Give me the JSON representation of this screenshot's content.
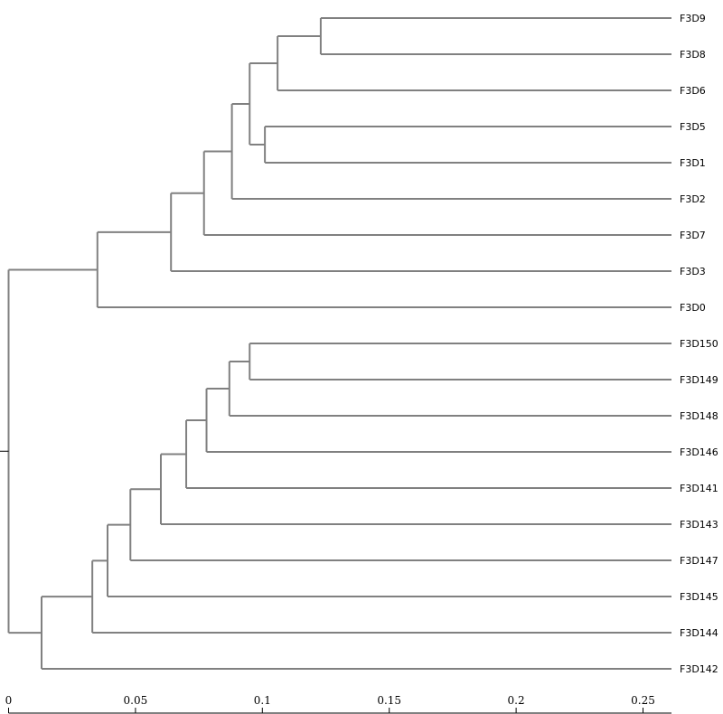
{
  "chart_data": {
    "type": "dendrogram",
    "orientation": "left",
    "colors": {
      "branch": "#808080",
      "axis": "#000000",
      "background": "#ffffff"
    },
    "leaves": [
      "F3D9",
      "F3D8",
      "F3D6",
      "F3D5",
      "F3D1",
      "F3D2",
      "F3D7",
      "F3D3",
      "F3D0",
      "F3D150",
      "F3D149",
      "F3D148",
      "F3D146",
      "F3D141",
      "F3D143",
      "F3D147",
      "F3D145",
      "F3D144",
      "F3D142"
    ],
    "xlim": [
      0,
      0.262
    ],
    "ticks": [
      {
        "value": 0,
        "label": "0"
      },
      {
        "value": 0.05,
        "label": "0.05"
      },
      {
        "value": 0.1,
        "label": "0.1"
      },
      {
        "value": 0.15,
        "label": "0.15"
      },
      {
        "value": 0.2,
        "label": "0.2"
      },
      {
        "value": 0.25,
        "label": "0.25"
      }
    ],
    "merges": [
      {
        "id": "N1",
        "height": 0.123,
        "children": [
          "F3D9",
          "F3D8"
        ]
      },
      {
        "id": "N2",
        "height": 0.106,
        "children": [
          "N1",
          "F3D6"
        ]
      },
      {
        "id": "N3",
        "height": 0.101,
        "children": [
          "F3D5",
          "F3D1"
        ]
      },
      {
        "id": "N4",
        "height": 0.095,
        "children": [
          "N2",
          "N3"
        ]
      },
      {
        "id": "N5",
        "height": 0.088,
        "children": [
          "N4",
          "F3D2"
        ]
      },
      {
        "id": "N6",
        "height": 0.077,
        "children": [
          "N5",
          "F3D7"
        ]
      },
      {
        "id": "N7",
        "height": 0.064,
        "children": [
          "N6",
          "F3D3"
        ]
      },
      {
        "id": "N8",
        "height": 0.035,
        "children": [
          "N7",
          "F3D0"
        ]
      },
      {
        "id": "N9",
        "height": 0.095,
        "children": [
          "F3D150",
          "F3D149"
        ]
      },
      {
        "id": "N10",
        "height": 0.087,
        "children": [
          "N9",
          "F3D148"
        ]
      },
      {
        "id": "N11",
        "height": 0.078,
        "children": [
          "N10",
          "F3D146"
        ]
      },
      {
        "id": "N12",
        "height": 0.07,
        "children": [
          "N11",
          "F3D141"
        ]
      },
      {
        "id": "N13",
        "height": 0.06,
        "children": [
          "N12",
          "F3D143"
        ]
      },
      {
        "id": "N14",
        "height": 0.048,
        "children": [
          "N13",
          "F3D147"
        ]
      },
      {
        "id": "N15",
        "height": 0.039,
        "children": [
          "N14",
          "F3D145"
        ]
      },
      {
        "id": "N16",
        "height": 0.033,
        "children": [
          "N15",
          "F3D144"
        ]
      },
      {
        "id": "N17",
        "height": 0.013,
        "children": [
          "N16",
          "F3D142"
        ]
      },
      {
        "id": "N18",
        "height": 0.0,
        "children": [
          "N8",
          "N17"
        ]
      }
    ]
  }
}
